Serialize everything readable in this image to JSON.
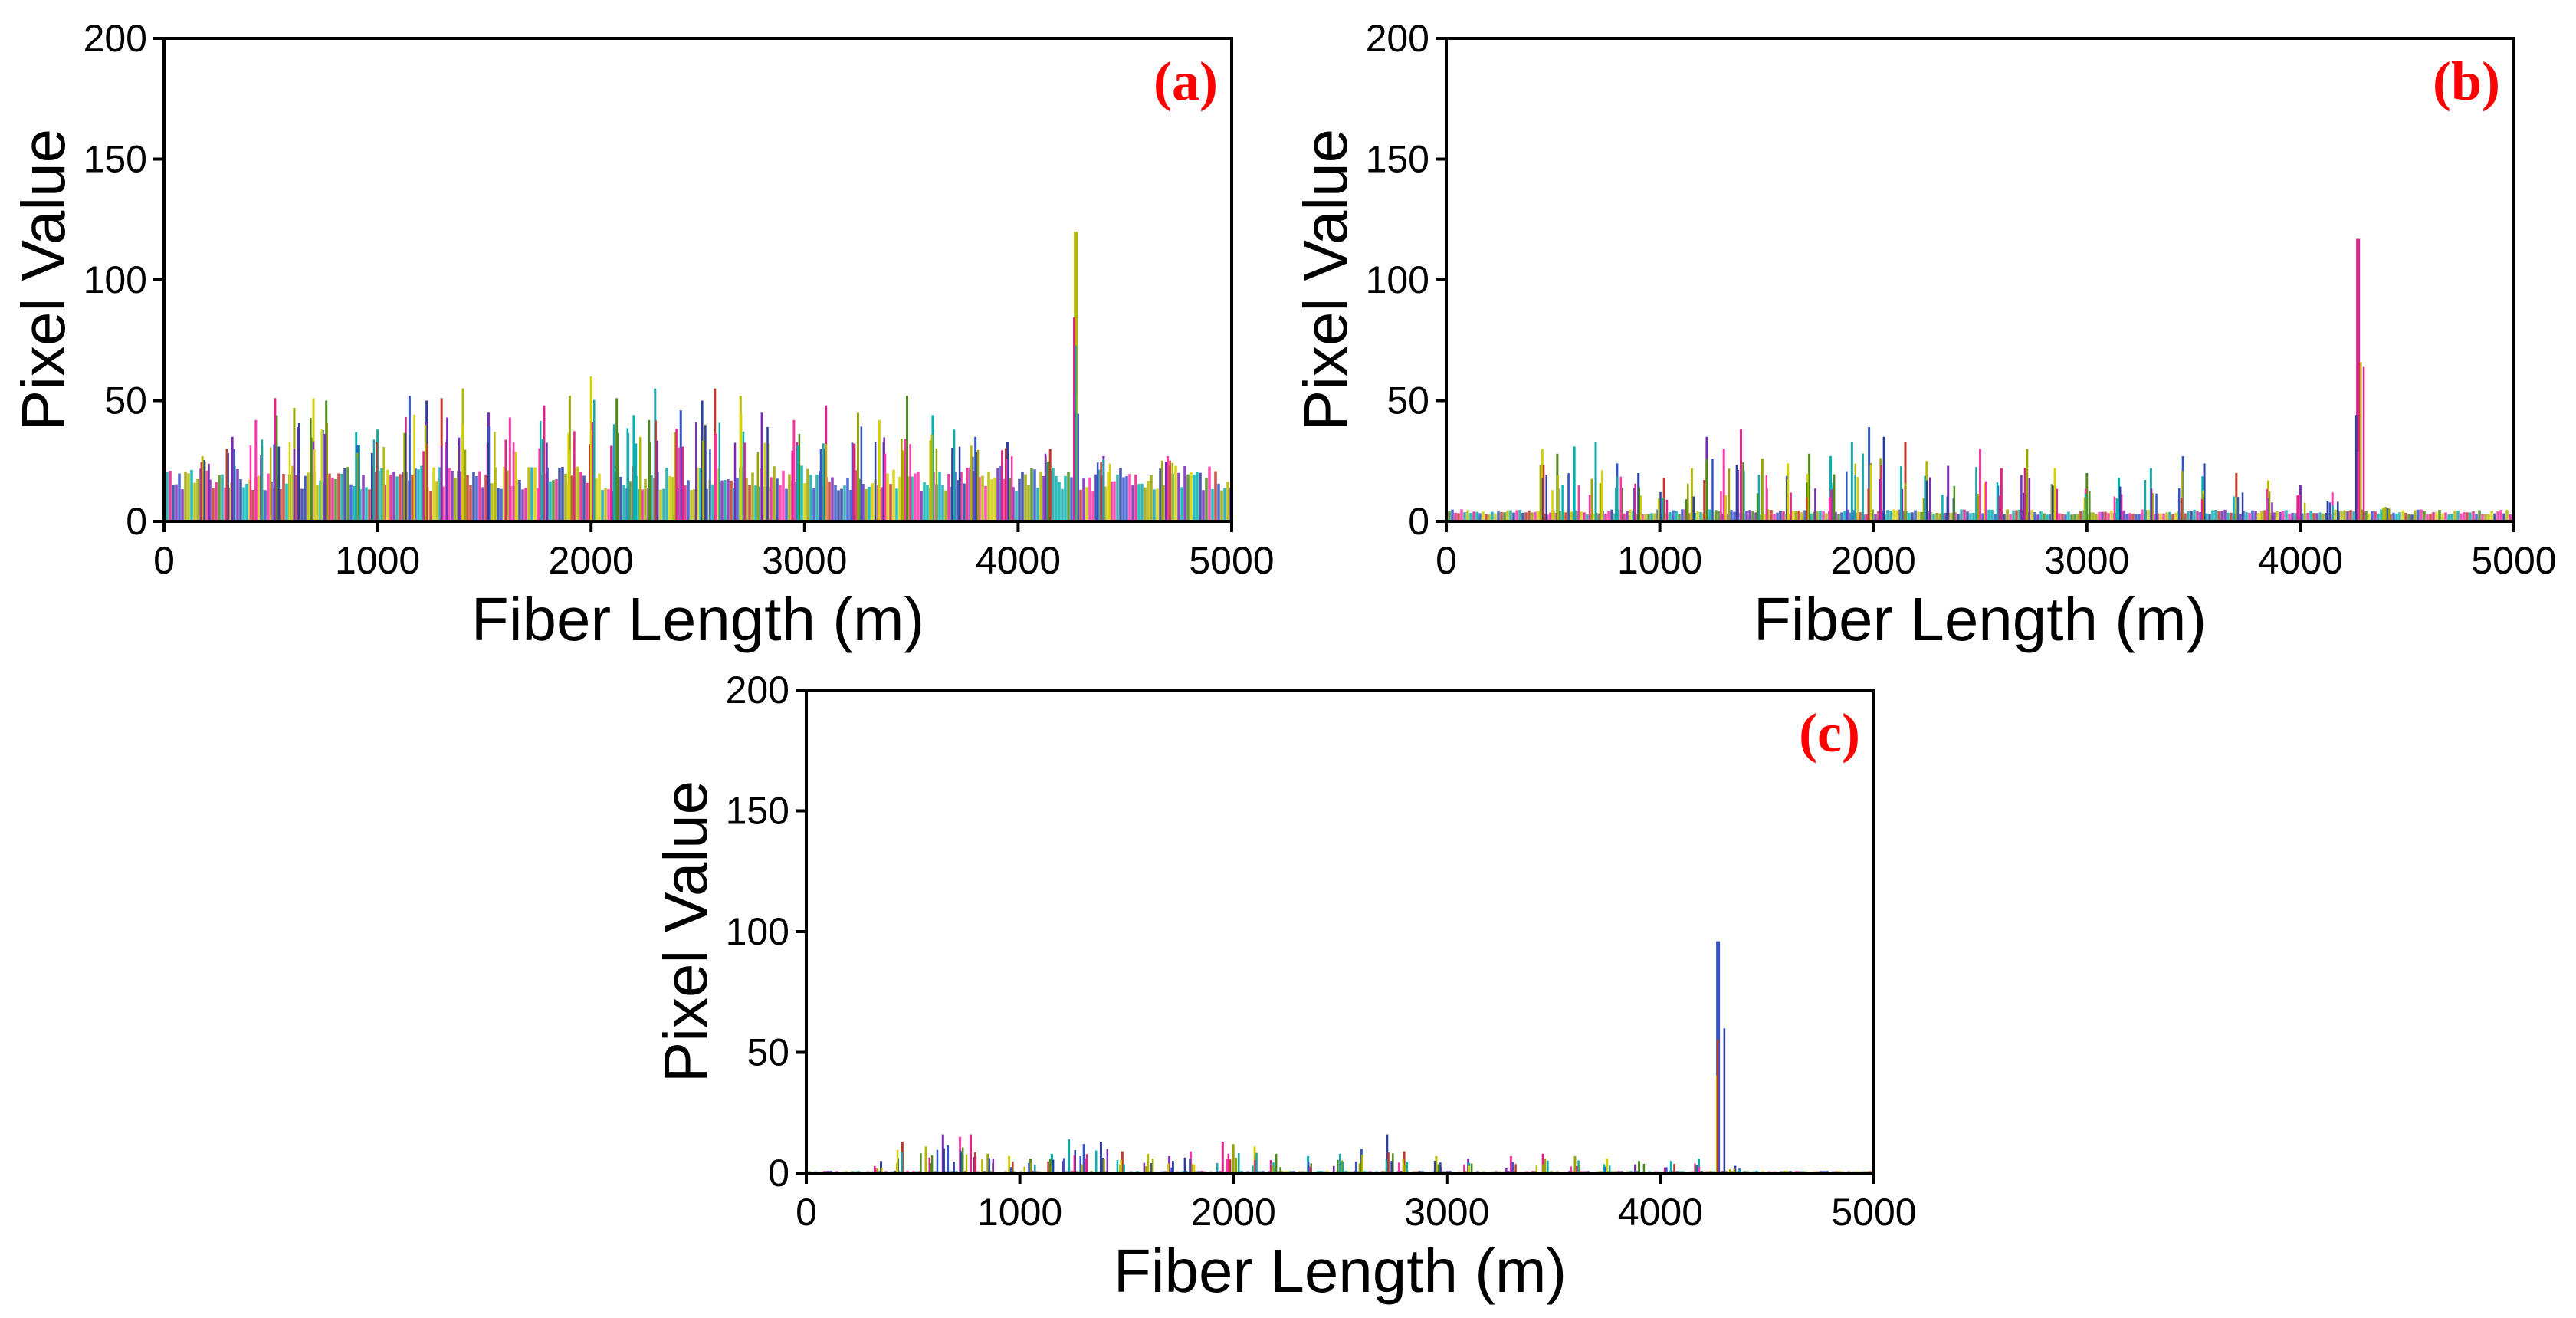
{
  "colors": {
    "panel_label": "#ff0000",
    "axes": "#000000",
    "series_palette": [
      "#b5b800",
      "#d6d000",
      "#2c3e9e",
      "#e0218a",
      "#1aa6a6",
      "#7a2bb5",
      "#4d8a1e",
      "#c0392b",
      "#9aa400",
      "#3355cc",
      "#ff33aa",
      "#00b3b3"
    ]
  },
  "chart_data": [
    {
      "type": "line",
      "panel_label": "(a)",
      "xlabel": "Fiber Length (m)",
      "ylabel": "Pixel Value",
      "xlim": [
        0,
        5000
      ],
      "ylim": [
        0,
        200
      ],
      "xticks": [
        "0",
        "1000",
        "2000",
        "3000",
        "4000",
        "5000"
      ],
      "yticks": [
        "0",
        "50",
        "100",
        "150",
        "200"
      ],
      "grid": false,
      "noise_floor": [
        0,
        23
      ],
      "peaks": [
        {
          "x": 180,
          "y": 27
        },
        {
          "x": 320,
          "y": 35
        },
        {
          "x": 430,
          "y": 42
        },
        {
          "x": 520,
          "y": 51
        },
        {
          "x": 610,
          "y": 47
        },
        {
          "x": 700,
          "y": 51
        },
        {
          "x": 760,
          "y": 50
        },
        {
          "x": 900,
          "y": 37
        },
        {
          "x": 1000,
          "y": 38
        },
        {
          "x": 1150,
          "y": 52
        },
        {
          "x": 1230,
          "y": 50
        },
        {
          "x": 1300,
          "y": 51
        },
        {
          "x": 1400,
          "y": 55
        },
        {
          "x": 1520,
          "y": 45
        },
        {
          "x": 1620,
          "y": 43
        },
        {
          "x": 1780,
          "y": 48
        },
        {
          "x": 1900,
          "y": 52
        },
        {
          "x": 2000,
          "y": 60
        },
        {
          "x": 2120,
          "y": 51
        },
        {
          "x": 2200,
          "y": 44
        },
        {
          "x": 2300,
          "y": 55
        },
        {
          "x": 2420,
          "y": 46
        },
        {
          "x": 2520,
          "y": 50
        },
        {
          "x": 2580,
          "y": 55
        },
        {
          "x": 2700,
          "y": 52
        },
        {
          "x": 2800,
          "y": 45
        },
        {
          "x": 2950,
          "y": 42
        },
        {
          "x": 3100,
          "y": 48
        },
        {
          "x": 3250,
          "y": 45
        },
        {
          "x": 3350,
          "y": 42
        },
        {
          "x": 3480,
          "y": 52
        },
        {
          "x": 3600,
          "y": 44
        },
        {
          "x": 3700,
          "y": 38
        },
        {
          "x": 3800,
          "y": 35
        },
        {
          "x": 3950,
          "y": 33
        },
        {
          "x": 4150,
          "y": 30
        },
        {
          "x": 4270,
          "y": 120
        },
        {
          "x": 4400,
          "y": 27
        },
        {
          "x": 4700,
          "y": 27
        }
      ]
    },
    {
      "type": "line",
      "panel_label": "(b)",
      "xlabel": "Fiber Length (m)",
      "ylabel": "Pixel Value",
      "xlim": [
        0,
        5000
      ],
      "ylim": [
        0,
        200
      ],
      "xticks": [
        "0",
        "1000",
        "2000",
        "3000",
        "4000",
        "5000"
      ],
      "yticks": [
        "0",
        "50",
        "100",
        "150",
        "200"
      ],
      "grid": false,
      "noise_floor": [
        0,
        5
      ],
      "peaks": [
        {
          "x": 450,
          "y": 30
        },
        {
          "x": 520,
          "y": 28
        },
        {
          "x": 600,
          "y": 31
        },
        {
          "x": 700,
          "y": 33
        },
        {
          "x": 800,
          "y": 24
        },
        {
          "x": 900,
          "y": 20
        },
        {
          "x": 1020,
          "y": 18
        },
        {
          "x": 1150,
          "y": 22
        },
        {
          "x": 1220,
          "y": 35
        },
        {
          "x": 1300,
          "y": 30
        },
        {
          "x": 1380,
          "y": 38
        },
        {
          "x": 1480,
          "y": 26
        },
        {
          "x": 1600,
          "y": 24
        },
        {
          "x": 1700,
          "y": 28
        },
        {
          "x": 1800,
          "y": 27
        },
        {
          "x": 1900,
          "y": 33
        },
        {
          "x": 1980,
          "y": 39
        },
        {
          "x": 2050,
          "y": 35
        },
        {
          "x": 2150,
          "y": 33
        },
        {
          "x": 2250,
          "y": 25
        },
        {
          "x": 2350,
          "y": 23
        },
        {
          "x": 2500,
          "y": 30
        },
        {
          "x": 2600,
          "y": 22
        },
        {
          "x": 2720,
          "y": 30
        },
        {
          "x": 2850,
          "y": 22
        },
        {
          "x": 3000,
          "y": 20
        },
        {
          "x": 3150,
          "y": 18
        },
        {
          "x": 3300,
          "y": 22
        },
        {
          "x": 3450,
          "y": 27
        },
        {
          "x": 3550,
          "y": 24
        },
        {
          "x": 3700,
          "y": 20
        },
        {
          "x": 3850,
          "y": 17
        },
        {
          "x": 4000,
          "y": 15
        },
        {
          "x": 4150,
          "y": 12
        },
        {
          "x": 4270,
          "y": 117
        },
        {
          "x": 4400,
          "y": 6
        }
      ]
    },
    {
      "type": "line",
      "panel_label": "(c)",
      "xlabel": "Fiber Length (m)",
      "ylabel": "Pixel Value",
      "xlim": [
        0,
        5000
      ],
      "ylim": [
        0,
        200
      ],
      "xticks": [
        "0",
        "1000",
        "2000",
        "3000",
        "4000",
        "5000"
      ],
      "yticks": [
        "0",
        "50",
        "100",
        "150",
        "200"
      ],
      "grid": false,
      "noise_floor": [
        0,
        1
      ],
      "peaks": [
        {
          "x": 350,
          "y": 5
        },
        {
          "x": 450,
          "y": 13
        },
        {
          "x": 560,
          "y": 11
        },
        {
          "x": 640,
          "y": 16
        },
        {
          "x": 720,
          "y": 15
        },
        {
          "x": 770,
          "y": 16
        },
        {
          "x": 850,
          "y": 8
        },
        {
          "x": 950,
          "y": 7
        },
        {
          "x": 1050,
          "y": 6
        },
        {
          "x": 1150,
          "y": 8
        },
        {
          "x": 1230,
          "y": 14
        },
        {
          "x": 1300,
          "y": 12
        },
        {
          "x": 1380,
          "y": 13
        },
        {
          "x": 1480,
          "y": 9
        },
        {
          "x": 1600,
          "y": 8
        },
        {
          "x": 1700,
          "y": 7
        },
        {
          "x": 1800,
          "y": 9
        },
        {
          "x": 1950,
          "y": 13
        },
        {
          "x": 2000,
          "y": 12
        },
        {
          "x": 2100,
          "y": 11
        },
        {
          "x": 2200,
          "y": 8
        },
        {
          "x": 2350,
          "y": 7
        },
        {
          "x": 2500,
          "y": 8
        },
        {
          "x": 2600,
          "y": 10
        },
        {
          "x": 2720,
          "y": 16
        },
        {
          "x": 2800,
          "y": 9
        },
        {
          "x": 2950,
          "y": 7
        },
        {
          "x": 3100,
          "y": 6
        },
        {
          "x": 3300,
          "y": 7
        },
        {
          "x": 3450,
          "y": 8
        },
        {
          "x": 3600,
          "y": 7
        },
        {
          "x": 3750,
          "y": 6
        },
        {
          "x": 3900,
          "y": 5
        },
        {
          "x": 4050,
          "y": 5
        },
        {
          "x": 4180,
          "y": 6
        },
        {
          "x": 4270,
          "y": 96
        },
        {
          "x": 4350,
          "y": 3
        }
      ]
    }
  ]
}
